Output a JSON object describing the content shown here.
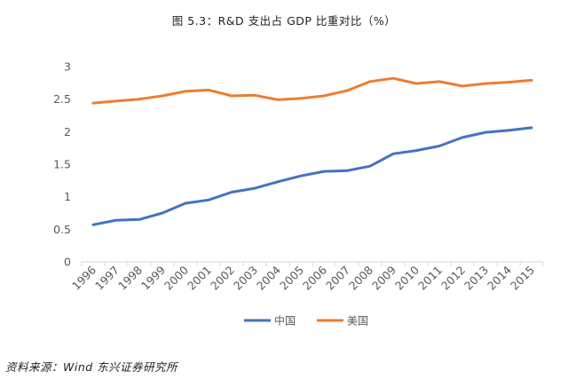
{
  "title": "图 5.3：R&D 支出占 GDP 比重对比（%）",
  "source": "资料来源：Wind 东兴证券研究所",
  "chart_data": {
    "type": "line",
    "title": "图 5.3：R&D 支出占 GDP 比重对比（%）",
    "xlabel": "",
    "ylabel": "",
    "ylim": [
      0,
      3
    ],
    "yticks": [
      "0",
      "0.5",
      "1",
      "1.5",
      "2",
      "2.5",
      "3"
    ],
    "grid": false,
    "legend_position": "bottom",
    "categories": [
      "1996",
      "1997",
      "1998",
      "1999",
      "2000",
      "2001",
      "2002",
      "2003",
      "2004",
      "2005",
      "2006",
      "2007",
      "2008",
      "2009",
      "2010",
      "2011",
      "2012",
      "2013",
      "2014",
      "2015"
    ],
    "series": [
      {
        "name": "中国",
        "color": "#4472C4",
        "values": [
          0.57,
          0.64,
          0.65,
          0.75,
          0.9,
          0.95,
          1.07,
          1.13,
          1.23,
          1.32,
          1.39,
          1.4,
          1.47,
          1.66,
          1.71,
          1.78,
          1.91,
          1.99,
          2.02,
          2.06
        ]
      },
      {
        "name": "美国",
        "color": "#ED7D31",
        "values": [
          2.44,
          2.47,
          2.5,
          2.55,
          2.62,
          2.64,
          2.55,
          2.56,
          2.49,
          2.51,
          2.55,
          2.63,
          2.77,
          2.82,
          2.74,
          2.77,
          2.7,
          2.74,
          2.76,
          2.79
        ]
      }
    ]
  }
}
